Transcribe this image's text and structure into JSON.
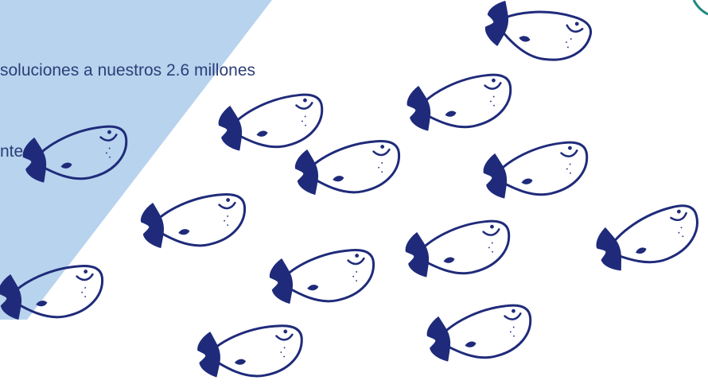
{
  "intro": {
    "lines": [
      "soluciones a nuestros 2.6 millones",
      "ntes."
    ]
  },
  "colors": {
    "panel": "#B8D3EE",
    "ink": "#1F2B7A",
    "text": "#2C3E78",
    "corner_ring": "#1E8A7E",
    "background": "#FFFFFF"
  },
  "icons": {
    "fish": "fish-doodle-icon"
  }
}
